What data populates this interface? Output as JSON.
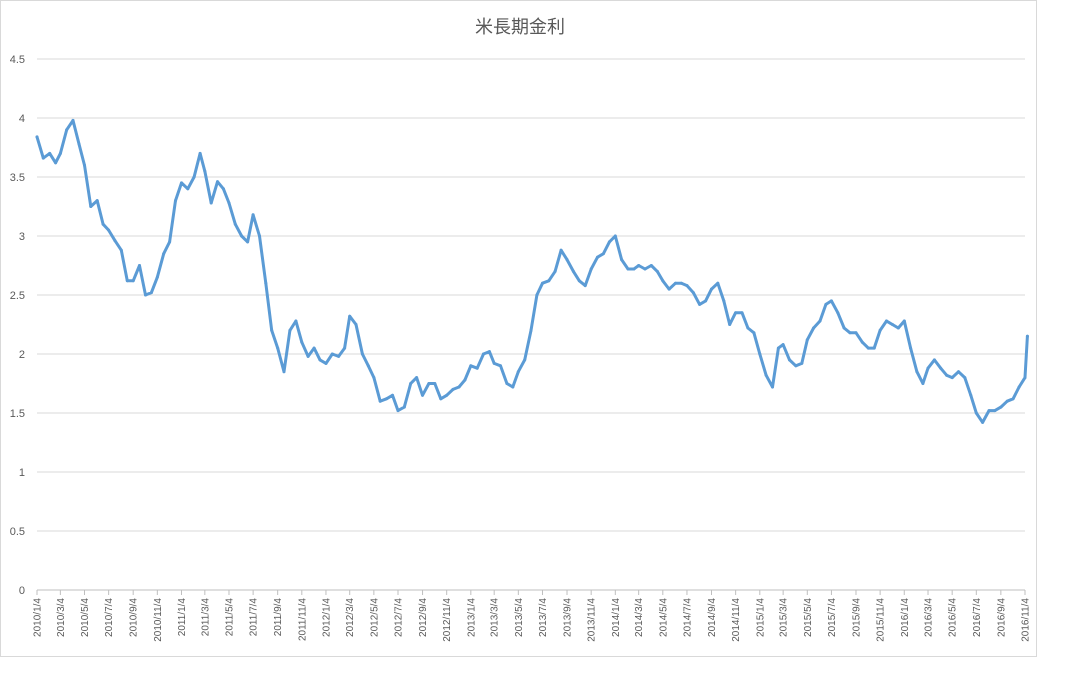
{
  "chart_data": {
    "type": "line",
    "title": "米長期金利",
    "xlabel": "",
    "ylabel": "",
    "ylim": [
      0,
      4.5
    ],
    "yticks": [
      "0",
      "0.5",
      "1",
      "1.5",
      "2",
      "2.5",
      "3",
      "3.5",
      "4",
      "4.5"
    ],
    "xticks": [
      "2010/1/4",
      "2010/3/4",
      "2010/5/4",
      "2010/7/4",
      "2010/9/4",
      "2010/11/4",
      "2011/1/4",
      "2011/3/4",
      "2011/5/4",
      "2011/7/4",
      "2011/9/4",
      "2011/11/4",
      "2012/1/4",
      "2012/3/4",
      "2012/5/4",
      "2012/7/4",
      "2012/9/4",
      "2012/11/4",
      "2013/1/4",
      "2013/3/4",
      "2013/5/4",
      "2013/7/4",
      "2013/9/4",
      "2013/11/4",
      "2014/1/4",
      "2014/3/4",
      "2014/5/4",
      "2014/7/4",
      "2014/9/4",
      "2014/11/4",
      "2015/1/4",
      "2015/3/4",
      "2015/5/4",
      "2015/7/4",
      "2015/9/4",
      "2015/11/4",
      "2016/1/4",
      "2016/3/4",
      "2016/5/4",
      "2016/7/4",
      "2016/9/4",
      "2016/11/4"
    ],
    "grid": true,
    "legend": "none",
    "series": [
      {
        "color": "#5b9bd5",
        "x": [
          "2010/1/4",
          "2010/1/20",
          "2010/2/5",
          "2010/2/20",
          "2010/3/4",
          "2010/3/20",
          "2010/4/5",
          "2010/4/20",
          "2010/5/4",
          "2010/5/20",
          "2010/6/5",
          "2010/6/20",
          "2010/7/4",
          "2010/7/20",
          "2010/8/5",
          "2010/8/20",
          "2010/9/4",
          "2010/9/20",
          "2010/10/5",
          "2010/10/20",
          "2010/11/4",
          "2010/11/20",
          "2010/12/5",
          "2010/12/20",
          "2011/1/4",
          "2011/1/20",
          "2011/2/5",
          "2011/2/20",
          "2011/3/4",
          "2011/3/20",
          "2011/4/5",
          "2011/4/20",
          "2011/5/4",
          "2011/5/20",
          "2011/6/5",
          "2011/6/20",
          "2011/7/4",
          "2011/7/20",
          "2011/8/5",
          "2011/8/20",
          "2011/9/4",
          "2011/9/20",
          "2011/10/5",
          "2011/10/20",
          "2011/11/4",
          "2011/11/20",
          "2011/12/5",
          "2011/12/20",
          "2012/1/4",
          "2012/1/20",
          "2012/2/5",
          "2012/2/20",
          "2012/3/4",
          "2012/3/20",
          "2012/4/5",
          "2012/4/20",
          "2012/5/4",
          "2012/5/20",
          "2012/6/5",
          "2012/6/20",
          "2012/7/4",
          "2012/7/20",
          "2012/8/5",
          "2012/8/20",
          "2012/9/4",
          "2012/9/20",
          "2012/10/5",
          "2012/10/20",
          "2012/11/4",
          "2012/11/20",
          "2012/12/5",
          "2012/12/20",
          "2013/1/4",
          "2013/1/20",
          "2013/2/5",
          "2013/2/20",
          "2013/3/4",
          "2013/3/20",
          "2013/4/5",
          "2013/4/20",
          "2013/5/4",
          "2013/5/20",
          "2013/6/5",
          "2013/6/20",
          "2013/7/4",
          "2013/7/20",
          "2013/8/5",
          "2013/8/20",
          "2013/9/4",
          "2013/9/20",
          "2013/10/5",
          "2013/10/20",
          "2013/11/4",
          "2013/11/20",
          "2013/12/5",
          "2013/12/20",
          "2014/1/4",
          "2014/1/20",
          "2014/2/5",
          "2014/2/20",
          "2014/3/4",
          "2014/3/20",
          "2014/4/5",
          "2014/4/20",
          "2014/5/4",
          "2014/5/20",
          "2014/6/5",
          "2014/6/20",
          "2014/7/4",
          "2014/7/20",
          "2014/8/5",
          "2014/8/20",
          "2014/9/4",
          "2014/9/20",
          "2014/10/5",
          "2014/10/20",
          "2014/11/4",
          "2014/11/20",
          "2014/12/5",
          "2014/12/20",
          "2015/1/4",
          "2015/1/20",
          "2015/2/5",
          "2015/2/20",
          "2015/3/4",
          "2015/3/20",
          "2015/4/5",
          "2015/4/20",
          "2015/5/4",
          "2015/5/20",
          "2015/6/5",
          "2015/6/20",
          "2015/7/4",
          "2015/7/20",
          "2015/8/5",
          "2015/8/20",
          "2015/9/4",
          "2015/9/20",
          "2015/10/5",
          "2015/10/20",
          "2015/11/4",
          "2015/11/20",
          "2015/12/5",
          "2015/12/20",
          "2016/1/4",
          "2016/1/20",
          "2016/2/5",
          "2016/2/20",
          "2016/3/4",
          "2016/3/20",
          "2016/4/5",
          "2016/4/20",
          "2016/5/4",
          "2016/5/20",
          "2016/6/5",
          "2016/6/20",
          "2016/7/4",
          "2016/7/20",
          "2016/8/5",
          "2016/8/20",
          "2016/9/4",
          "2016/9/20",
          "2016/10/5",
          "2016/10/20",
          "2016/11/4",
          "2016/11/10"
        ],
        "y": [
          3.84,
          3.66,
          3.7,
          3.62,
          3.7,
          3.9,
          3.98,
          3.78,
          3.6,
          3.25,
          3.3,
          3.1,
          3.05,
          2.96,
          2.88,
          2.62,
          2.62,
          2.75,
          2.5,
          2.52,
          2.65,
          2.85,
          2.95,
          3.3,
          3.45,
          3.4,
          3.5,
          3.7,
          3.55,
          3.28,
          3.46,
          3.4,
          3.28,
          3.1,
          3.0,
          2.95,
          3.18,
          3.0,
          2.6,
          2.2,
          2.05,
          1.85,
          2.2,
          2.28,
          2.1,
          1.98,
          2.05,
          1.95,
          1.92,
          2.0,
          1.98,
          2.05,
          2.32,
          2.25,
          2.0,
          1.9,
          1.8,
          1.6,
          1.62,
          1.65,
          1.52,
          1.55,
          1.75,
          1.8,
          1.65,
          1.75,
          1.75,
          1.62,
          1.65,
          1.7,
          1.72,
          1.78,
          1.9,
          1.88,
          2.0,
          2.02,
          1.92,
          1.9,
          1.75,
          1.72,
          1.85,
          1.95,
          2.2,
          2.5,
          2.6,
          2.62,
          2.7,
          2.88,
          2.8,
          2.7,
          2.62,
          2.58,
          2.72,
          2.82,
          2.85,
          2.95,
          3.0,
          2.8,
          2.72,
          2.72,
          2.75,
          2.72,
          2.75,
          2.7,
          2.62,
          2.55,
          2.6,
          2.6,
          2.58,
          2.52,
          2.42,
          2.45,
          2.55,
          2.6,
          2.45,
          2.25,
          2.35,
          2.35,
          2.22,
          2.18,
          2.0,
          1.82,
          1.72,
          2.05,
          2.08,
          1.95,
          1.9,
          1.92,
          2.12,
          2.22,
          2.28,
          2.42,
          2.45,
          2.35,
          2.22,
          2.18,
          2.18,
          2.1,
          2.05,
          2.05,
          2.2,
          2.28,
          2.25,
          2.22,
          2.28,
          2.05,
          1.85,
          1.75,
          1.88,
          1.95,
          1.88,
          1.82,
          1.8,
          1.85,
          1.8,
          1.65,
          1.5,
          1.42,
          1.52,
          1.52,
          1.55,
          1.6,
          1.62,
          1.72,
          1.8,
          2.15
        ]
      }
    ]
  }
}
